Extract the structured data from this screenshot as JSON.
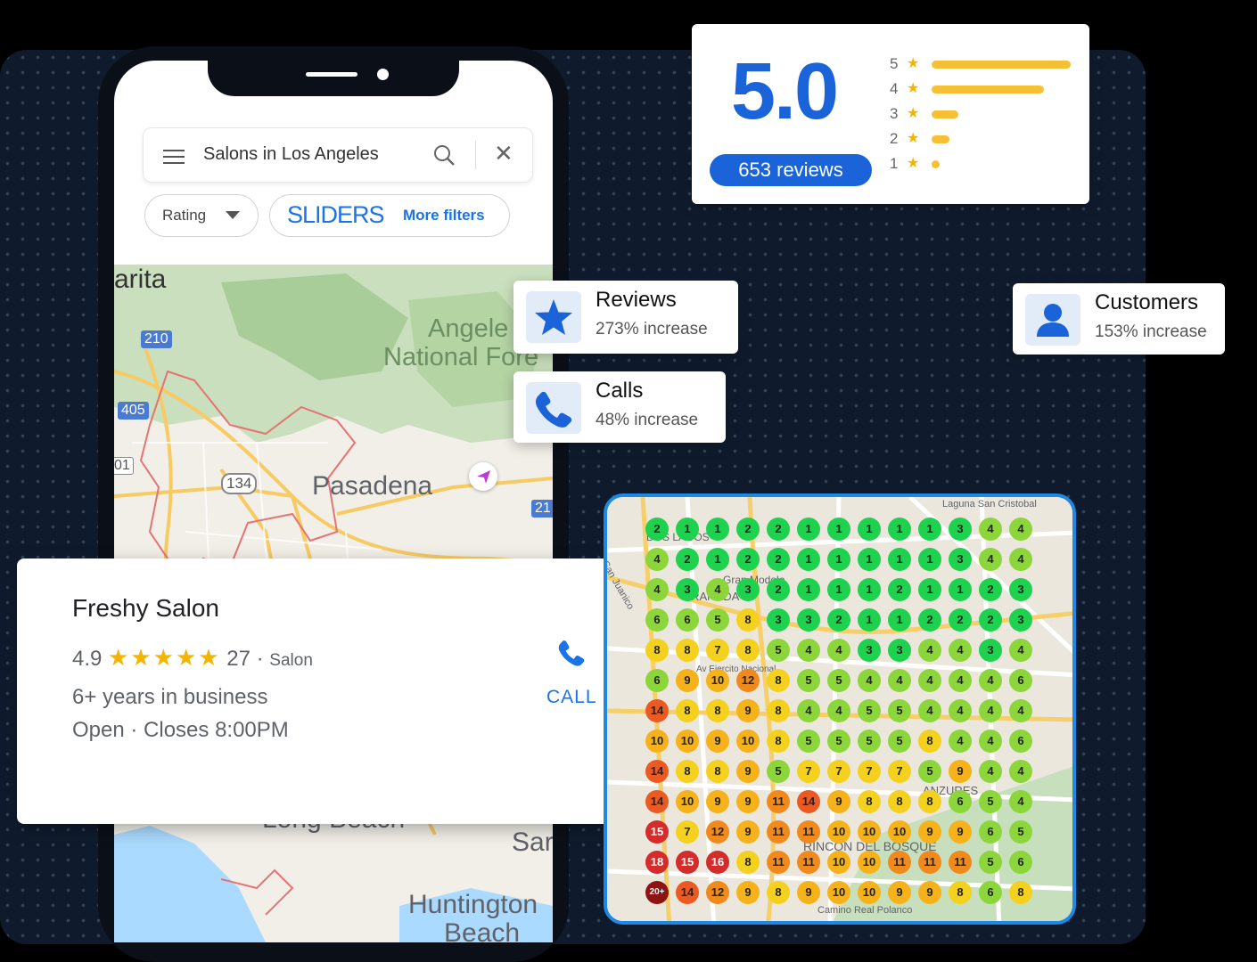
{
  "search": {
    "query": "Salons in Los Angeles"
  },
  "filters": {
    "rating_label": "Rating",
    "brand": "SLIDERS",
    "more_filters_label": "More filters"
  },
  "map_labels": [
    "arita",
    "Angele",
    "National Fore",
    "Pasadena",
    "Long Beach",
    "Sar",
    "Huntington",
    "Beach"
  ],
  "map_shields": [
    "210",
    "405",
    "134",
    "01",
    "21"
  ],
  "rating_card": {
    "score": "5.0",
    "reviews": "653 reviews",
    "breakdown": [
      {
        "stars": "5",
        "fraction": 1.0
      },
      {
        "stars": "4",
        "fraction": 0.81
      },
      {
        "stars": "3",
        "fraction": 0.19
      },
      {
        "stars": "2",
        "fraction": 0.13
      },
      {
        "stars": "1",
        "fraction": 0.03
      }
    ]
  },
  "stats": [
    {
      "title": "Reviews",
      "desc": "273% increase",
      "icon": "star-icon"
    },
    {
      "title": "Calls",
      "desc": "48% increase",
      "icon": "phone-icon"
    },
    {
      "title": "Customers",
      "desc": "153% increase",
      "icon": "person-icon"
    }
  ],
  "business": {
    "name": "Freshy Salon",
    "rating": "4.9",
    "stars": "★★★★★",
    "count": "27 ·",
    "type": "Salon",
    "years": "6+ years in business",
    "hours": "Open · Closes 8:00PM",
    "call_label": "CALL"
  },
  "heatmap_labels": [
    "Laguna San Cristobal",
    "DOS LAGOS",
    "San Juanico",
    "Gran Modelo",
    "GRANADA",
    "Av Ejercito Nacional",
    "ANZURES",
    "RINCON DEL BOSQUE",
    "Camino Real Polanco"
  ],
  "heatmap": [
    [
      "2",
      "1",
      "1",
      "2",
      "2",
      "1",
      "1",
      "1",
      "1",
      "1",
      "3",
      "4",
      "4"
    ],
    [
      "4",
      "2",
      "1",
      "2",
      "2",
      "1",
      "1",
      "1",
      "1",
      "1",
      "3",
      "4",
      "4"
    ],
    [
      "4",
      "3",
      "4",
      "3",
      "2",
      "1",
      "1",
      "1",
      "2",
      "1",
      "1",
      "2",
      "3"
    ],
    [
      "6",
      "6",
      "5",
      "8",
      "3",
      "3",
      "2",
      "1",
      "1",
      "2",
      "2",
      "2",
      "3"
    ],
    [
      "8",
      "8",
      "7",
      "8",
      "5",
      "4",
      "4",
      "3",
      "3",
      "4",
      "4",
      "3",
      "4"
    ],
    [
      "6",
      "9",
      "10",
      "12",
      "8",
      "5",
      "5",
      "4",
      "4",
      "4",
      "4",
      "4",
      "6"
    ],
    [
      "14",
      "8",
      "8",
      "9",
      "8",
      "4",
      "4",
      "5",
      "5",
      "4",
      "4",
      "4",
      "4"
    ],
    [
      "10",
      "10",
      "9",
      "10",
      "8",
      "5",
      "5",
      "5",
      "5",
      "8",
      "4",
      "4",
      "6"
    ],
    [
      "14",
      "8",
      "8",
      "9",
      "5",
      "7",
      "7",
      "7",
      "7",
      "5",
      "9",
      "4",
      "4"
    ],
    [
      "14",
      "10",
      "9",
      "9",
      "11",
      "14",
      "9",
      "8",
      "8",
      "8",
      "6",
      "5",
      "4"
    ],
    [
      "15",
      "7",
      "12",
      "9",
      "11",
      "11",
      "10",
      "10",
      "10",
      "9",
      "9",
      "6",
      "5"
    ],
    [
      "18",
      "15",
      "16",
      "8",
      "11",
      "11",
      "10",
      "10",
      "11",
      "11",
      "11",
      "5",
      "6"
    ],
    [
      "20+",
      "14",
      "12",
      "9",
      "8",
      "9",
      "10",
      "10",
      "9",
      "9",
      "8",
      "6",
      "8"
    ]
  ],
  "colors": {
    "accent_blue": "#1b63d8",
    "star_yellow": "#f4b400",
    "panel_bg": "#0f1b2d",
    "heatmap_scale": [
      "#1ed14f",
      "#8cd63c",
      "#f4d11f",
      "#f5b21a",
      "#f18a1c",
      "#ea5a22",
      "#d42b2b",
      "#8e1414"
    ]
  }
}
